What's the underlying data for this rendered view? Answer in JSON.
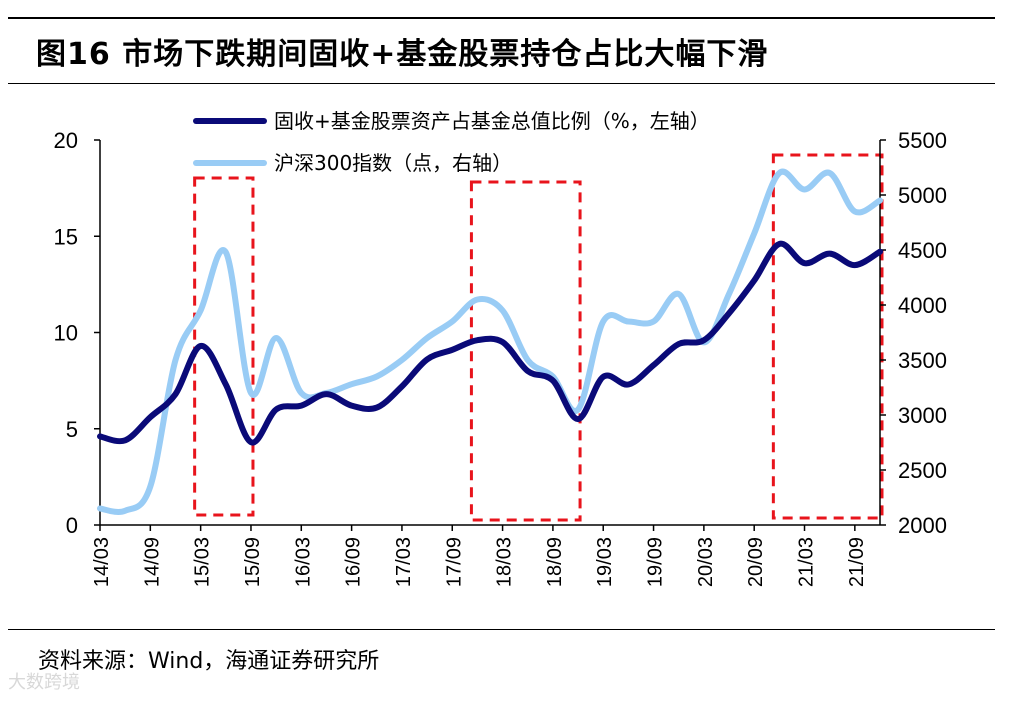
{
  "title": "图16 市场下跌期间固收+基金股票持仓占比大幅下滑",
  "source": "资料来源：Wind，海通证券研究所",
  "watermark": "大数跨境",
  "colors": {
    "series1": "#0a0a78",
    "series2": "#99ccf5",
    "highlight": "#e8141c"
  },
  "chart_data": {
    "type": "line",
    "x": [
      "14/03",
      "14/06",
      "14/09",
      "14/12",
      "15/03",
      "15/06",
      "15/09",
      "15/12",
      "16/03",
      "16/06",
      "16/09",
      "16/12",
      "17/03",
      "17/06",
      "17/09",
      "17/12",
      "18/03",
      "18/06",
      "18/09",
      "18/12",
      "19/03",
      "19/06",
      "19/09",
      "19/12",
      "20/03",
      "20/06",
      "20/09",
      "20/12",
      "21/03",
      "21/06",
      "21/09",
      "21/12"
    ],
    "x_tick_labels": [
      "14/03",
      "14/09",
      "15/03",
      "15/09",
      "16/03",
      "16/09",
      "17/03",
      "17/09",
      "18/03",
      "18/09",
      "19/03",
      "19/09",
      "20/03",
      "20/09",
      "21/03",
      "21/09"
    ],
    "series": [
      {
        "name": "固收+基金股票资产占基金总值比例（%，左轴）",
        "axis": "left",
        "color": "#0a0a78",
        "values": [
          4.6,
          4.4,
          5.6,
          6.8,
          9.3,
          7.3,
          4.3,
          6.0,
          6.2,
          6.8,
          6.2,
          6.1,
          7.2,
          8.6,
          9.1,
          9.6,
          9.5,
          8.0,
          7.5,
          5.5,
          7.7,
          7.3,
          8.3,
          9.4,
          9.6,
          11.0,
          12.7,
          14.6,
          13.6,
          14.1,
          13.5,
          14.2
        ]
      },
      {
        "name": "沪深300指数（点，右轴）",
        "axis": "right",
        "color": "#99ccf5",
        "values": [
          2150,
          2130,
          2350,
          3500,
          3950,
          4480,
          3200,
          3700,
          3200,
          3200,
          3280,
          3350,
          3500,
          3700,
          3850,
          4050,
          3950,
          3500,
          3350,
          3050,
          3850,
          3850,
          3850,
          4100,
          3660,
          4100,
          4650,
          5200,
          5050,
          5200,
          4850,
          4950
        ]
      }
    ],
    "left_axis": {
      "min": 0,
      "max": 20,
      "ticks": [
        0,
        5,
        10,
        15,
        20
      ]
    },
    "right_axis": {
      "min": 2000,
      "max": 5500,
      "ticks": [
        2000,
        2500,
        3000,
        3500,
        4000,
        4500,
        5000,
        5500
      ]
    },
    "highlight_periods": [
      {
        "from": "15/03",
        "to": "15/09"
      },
      {
        "from": "17/12",
        "to": "18/12"
      },
      {
        "from": "20/12",
        "to": "21/12"
      }
    ],
    "legend_position": "top-center"
  }
}
